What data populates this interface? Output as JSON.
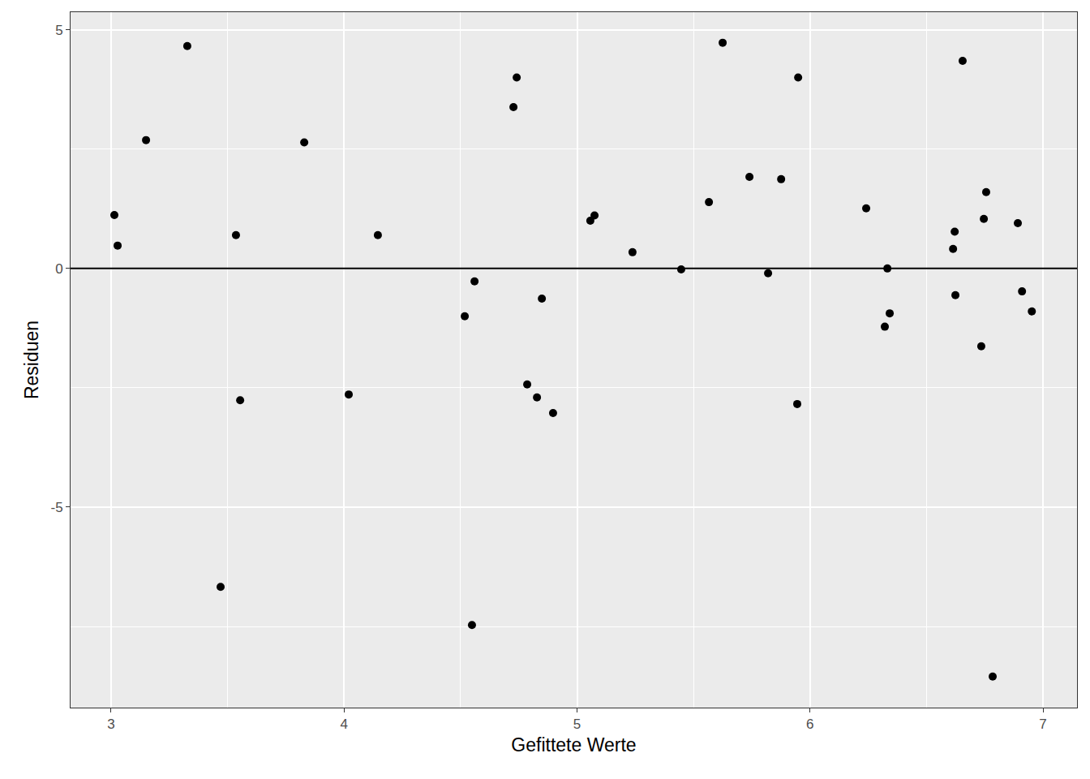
{
  "chart_data": {
    "type": "scatter",
    "x_label": "Gefittete Werte",
    "y_label": "Residuen",
    "xlim": [
      2.826,
      7.146
    ],
    "ylim": [
      -9.2,
      5.37
    ],
    "xticks": [
      3,
      4,
      5,
      6,
      7
    ],
    "yticks": [
      -5,
      0,
      5
    ],
    "grid": true,
    "series": [
      {
        "type": "scatter",
        "color": "#000000",
        "marker": "circle",
        "x": [
          3.014,
          3.028,
          3.15,
          3.327,
          3.47,
          3.536,
          3.554,
          3.829,
          4.02,
          4.145,
          4.518,
          4.549,
          4.56,
          4.727,
          4.741,
          4.786,
          4.828,
          4.849,
          4.897,
          5.057,
          5.075,
          5.238,
          5.447,
          5.566,
          5.625,
          5.74,
          5.82,
          5.876,
          5.945,
          5.949,
          6.241,
          6.321,
          6.332,
          6.342,
          6.614,
          6.621,
          6.624,
          6.655,
          6.735,
          6.746,
          6.756,
          6.784,
          6.892,
          6.91,
          6.952
        ],
        "values": [
          1.12,
          0.48,
          2.69,
          4.66,
          -6.67,
          0.7,
          -2.76,
          2.64,
          -2.64,
          0.7,
          -1.0,
          -7.47,
          -0.27,
          3.38,
          4.0,
          -2.43,
          -2.7,
          -0.63,
          -3.03,
          1.0,
          1.11,
          0.34,
          -0.02,
          1.39,
          4.73,
          1.92,
          -0.1,
          1.87,
          -2.84,
          4.0,
          1.26,
          -1.22,
          0.0,
          -0.94,
          0.41,
          0.77,
          -0.56,
          4.35,
          -1.63,
          1.04,
          1.6,
          -8.55,
          0.95,
          -0.48,
          -0.9
        ]
      },
      {
        "type": "line",
        "color": "#000000",
        "line_style": "solid",
        "x": [
          2.826,
          7.146
        ],
        "values": [
          0,
          0
        ]
      }
    ]
  }
}
